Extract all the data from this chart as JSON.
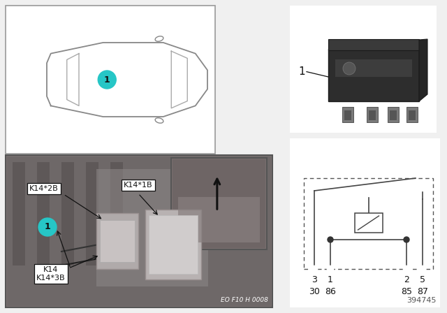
{
  "bg_color": "#f0f0f0",
  "teal_color": "#26C6C6",
  "black": "#111111",
  "dark_gray": "#444444",
  "mid_gray": "#888888",
  "light_gray": "#cccccc",
  "white": "#ffffff",
  "photo_bg": "#808080",
  "footer_text": "394745",
  "watermark": "EO F10 H 0008",
  "label_1": "1",
  "k_label_2b": "K14*2B",
  "k_label_1b": "K14*1B",
  "k_label_14": "K14",
  "k_label_3b": "K14*3B",
  "pin_top": [
    "3",
    "1",
    "2",
    "5"
  ],
  "pin_bot": [
    "30",
    "86",
    "85",
    "87"
  ]
}
